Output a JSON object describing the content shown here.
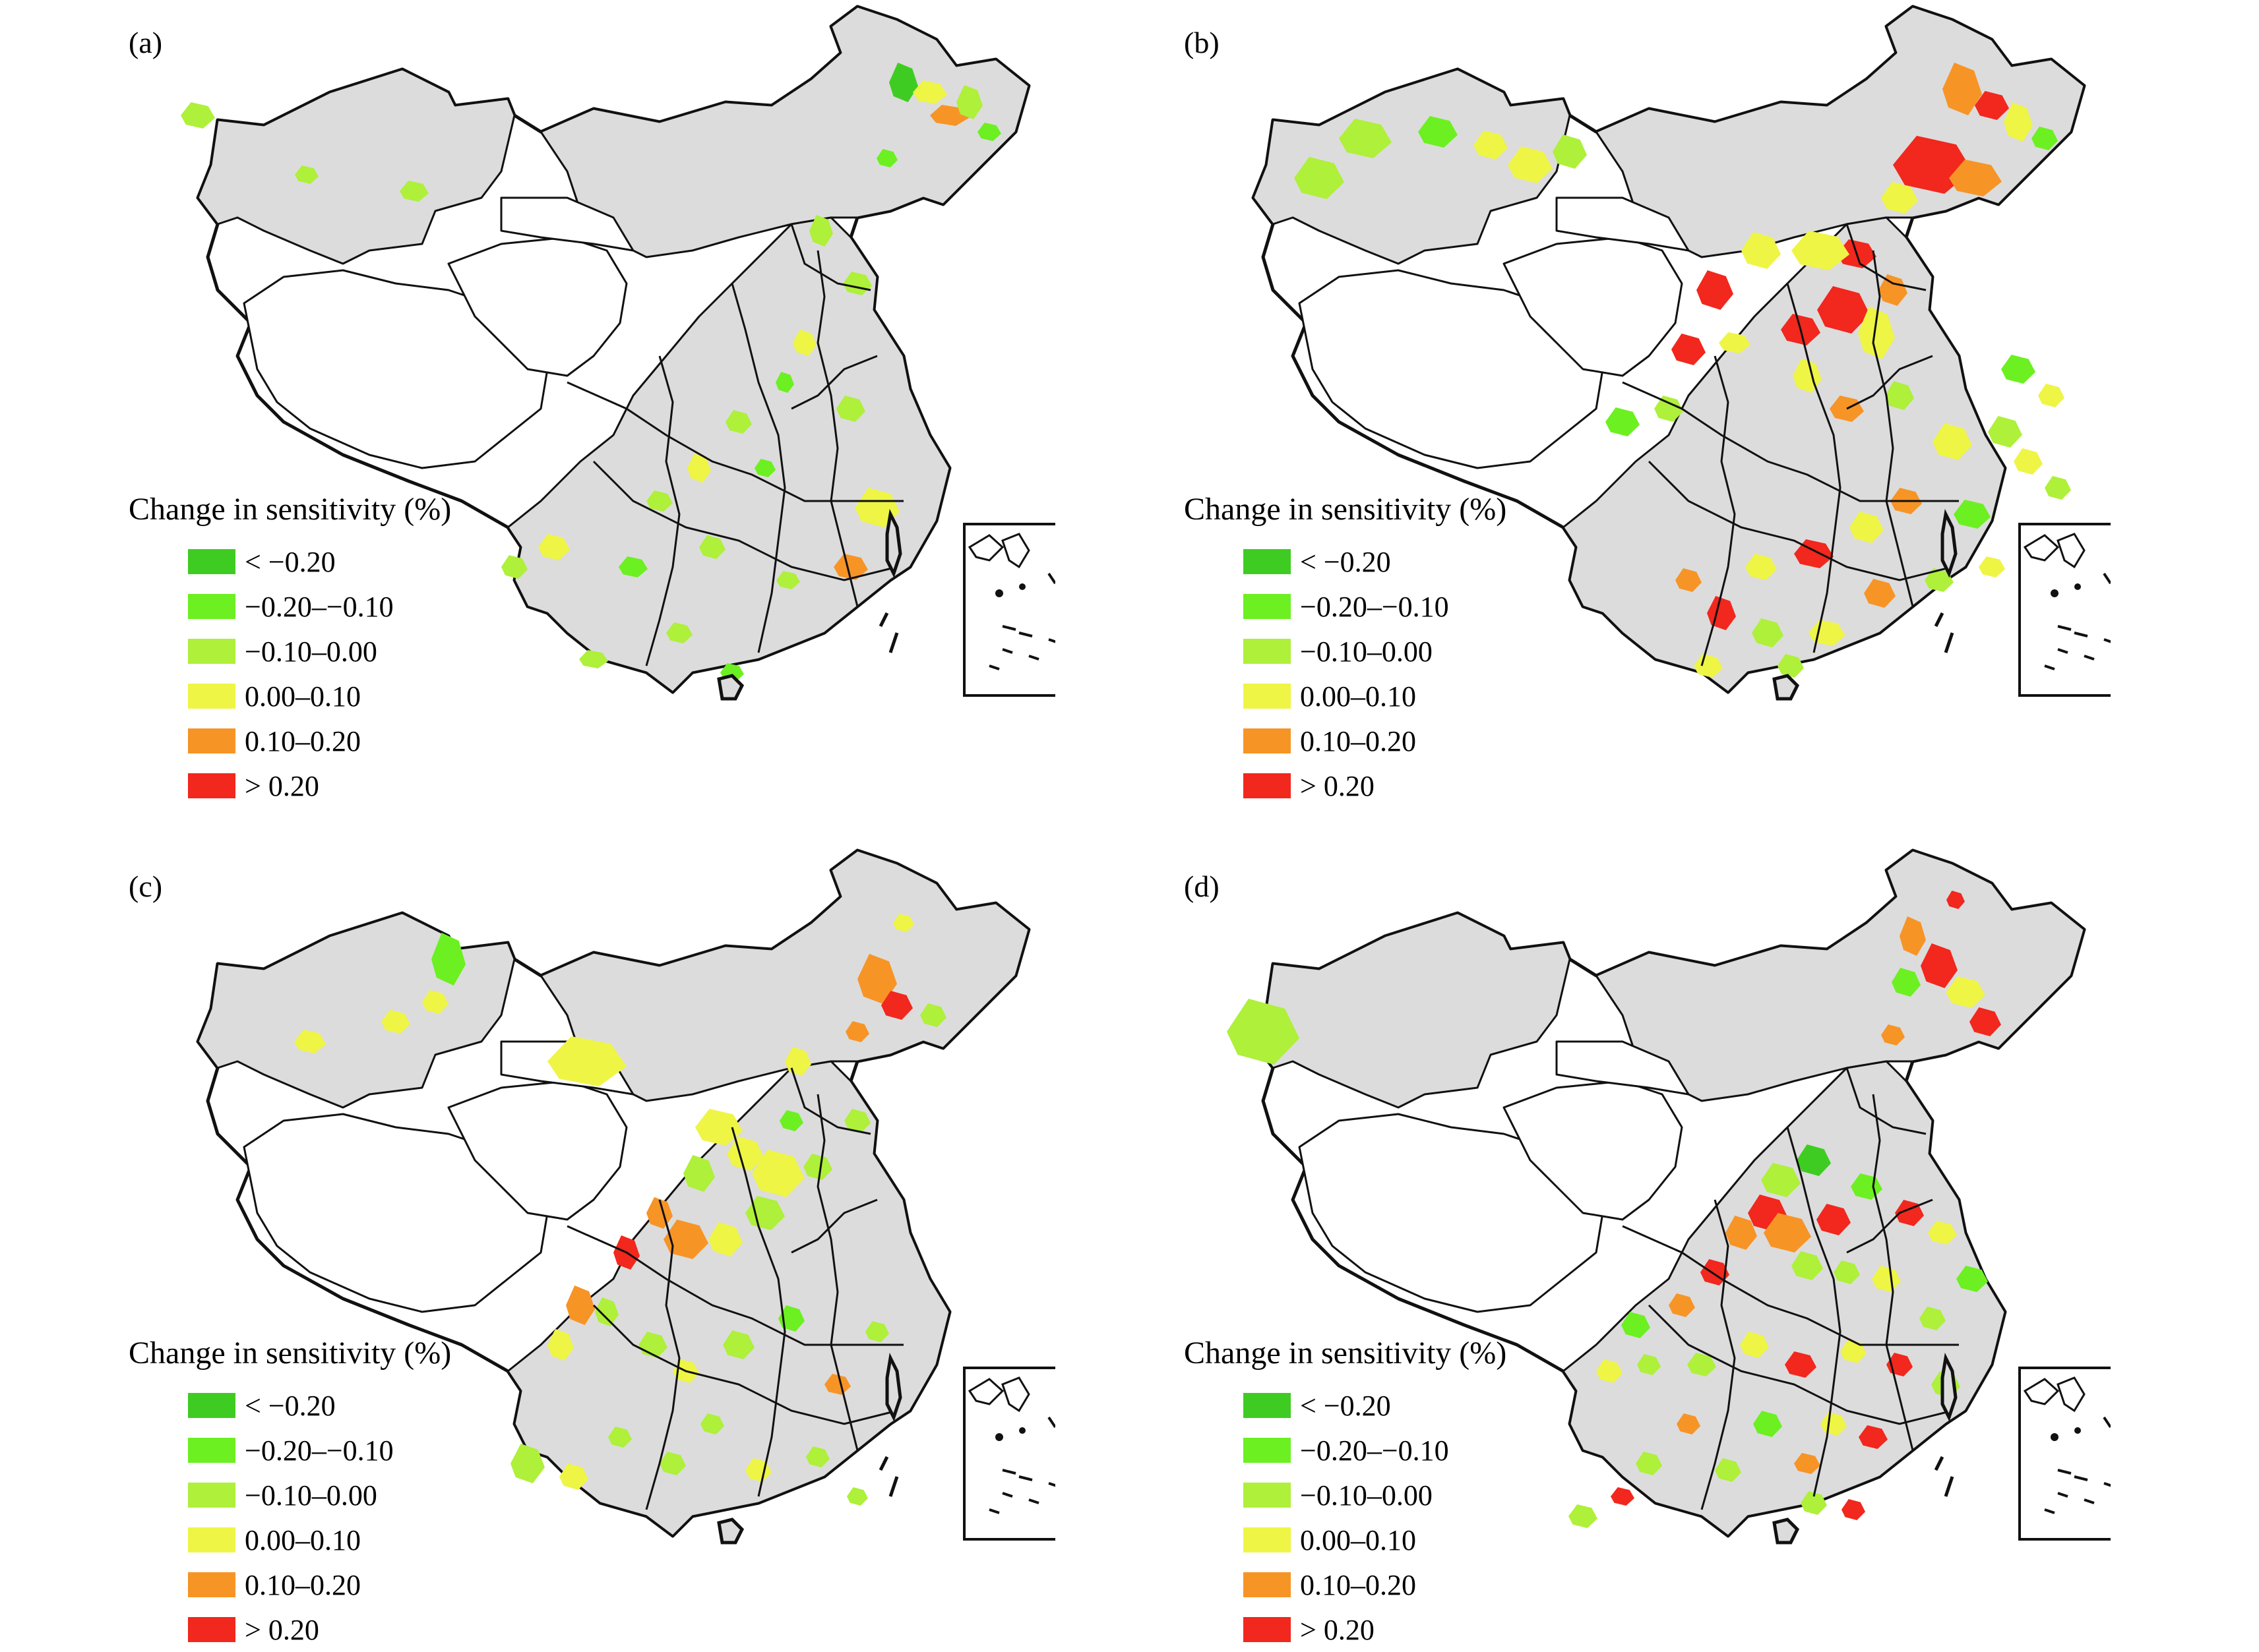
{
  "panels": [
    {
      "id": "a",
      "label": "(a)",
      "patches": [
        [
          300,
          175,
          26,
          20,
          3
        ],
        [
          465,
          265,
          18,
          14,
          3
        ],
        [
          628,
          290,
          22,
          16,
          3
        ],
        [
          1370,
          125,
          22,
          30,
          1
        ],
        [
          1410,
          140,
          26,
          18,
          4
        ],
        [
          1440,
          175,
          30,
          16,
          5
        ],
        [
          1470,
          155,
          20,
          26,
          3
        ],
        [
          1500,
          200,
          18,
          14,
          2
        ],
        [
          1345,
          240,
          16,
          14,
          2
        ],
        [
          1245,
          350,
          18,
          24,
          3
        ],
        [
          1300,
          430,
          22,
          18,
          3
        ],
        [
          1220,
          520,
          18,
          20,
          4
        ],
        [
          1190,
          580,
          14,
          16,
          2
        ],
        [
          1120,
          640,
          20,
          18,
          3
        ],
        [
          1060,
          710,
          18,
          22,
          4
        ],
        [
          1000,
          760,
          20,
          16,
          3
        ],
        [
          1160,
          710,
          16,
          14,
          2
        ],
        [
          1290,
          620,
          22,
          20,
          3
        ],
        [
          1330,
          770,
          34,
          30,
          4
        ],
        [
          1290,
          860,
          26,
          20,
          5
        ],
        [
          1195,
          880,
          18,
          14,
          3
        ],
        [
          1080,
          830,
          20,
          18,
          3
        ],
        [
          960,
          860,
          22,
          16,
          2
        ],
        [
          840,
          830,
          24,
          20,
          4
        ],
        [
          780,
          860,
          20,
          18,
          3
        ],
        [
          1110,
          1020,
          18,
          14,
          2
        ],
        [
          1030,
          960,
          20,
          16,
          3
        ],
        [
          900,
          1000,
          22,
          14,
          3
        ]
      ]
    },
    {
      "id": "b",
      "label": "(b)",
      "patches": [
        [
          1375,
          135,
          30,
          40,
          5
        ],
        [
          1420,
          160,
          26,
          22,
          6
        ],
        [
          1460,
          185,
          22,
          30,
          4
        ],
        [
          1500,
          210,
          20,
          18,
          2
        ],
        [
          1330,
          250,
          60,
          44,
          6
        ],
        [
          1395,
          270,
          40,
          28,
          5
        ],
        [
          1280,
          300,
          28,
          24,
          4
        ],
        [
          1215,
          385,
          30,
          22,
          6
        ],
        [
          1195,
          470,
          40,
          36,
          6
        ],
        [
          1245,
          505,
          28,
          40,
          4
        ],
        [
          1270,
          440,
          22,
          24,
          5
        ],
        [
          1130,
          500,
          30,
          24,
          6
        ],
        [
          1030,
          520,
          24,
          16,
          4
        ],
        [
          960,
          530,
          26,
          24,
          6
        ],
        [
          930,
          620,
          22,
          20,
          3
        ],
        [
          860,
          640,
          26,
          22,
          2
        ],
        [
          1070,
          380,
          30,
          28,
          4
        ],
        [
          1160,
          380,
          44,
          30,
          4
        ],
        [
          1000,
          440,
          28,
          30,
          6
        ],
        [
          1140,
          570,
          22,
          26,
          4
        ],
        [
          1200,
          620,
          26,
          20,
          5
        ],
        [
          1280,
          600,
          22,
          22,
          3
        ],
        [
          1360,
          670,
          30,
          28,
          4
        ],
        [
          1440,
          655,
          26,
          24,
          3
        ],
        [
          1475,
          700,
          22,
          20,
          4
        ],
        [
          1520,
          740,
          20,
          18,
          3
        ],
        [
          1390,
          780,
          28,
          22,
          2
        ],
        [
          1290,
          760,
          24,
          20,
          5
        ],
        [
          1230,
          800,
          26,
          24,
          4
        ],
        [
          1150,
          840,
          30,
          22,
          6
        ],
        [
          1070,
          860,
          24,
          20,
          4
        ],
        [
          1010,
          930,
          22,
          26,
          6
        ],
        [
          960,
          880,
          20,
          18,
          5
        ],
        [
          1080,
          960,
          24,
          22,
          3
        ],
        [
          1170,
          960,
          28,
          20,
          4
        ],
        [
          1250,
          900,
          24,
          22,
          5
        ],
        [
          1340,
          880,
          22,
          18,
          3
        ],
        [
          1420,
          860,
          20,
          16,
          4
        ],
        [
          1115,
          1010,
          20,
          18,
          3
        ],
        [
          990,
          1010,
          22,
          18,
          4
        ],
        [
          400,
          270,
          38,
          32,
          3
        ],
        [
          470,
          210,
          40,
          30,
          3
        ],
        [
          580,
          200,
          30,
          24,
          2
        ],
        [
          660,
          220,
          26,
          22,
          4
        ],
        [
          720,
          250,
          34,
          28,
          4
        ],
        [
          780,
          230,
          26,
          26,
          3
        ],
        [
          1460,
          560,
          26,
          22,
          2
        ],
        [
          1510,
          600,
          20,
          18,
          4
        ]
      ]
    },
    {
      "id": "c",
      "label": "(c)",
      "patches": [
        [
          680,
          175,
          26,
          40,
          2
        ],
        [
          470,
          300,
          24,
          18,
          4
        ],
        [
          600,
          270,
          22,
          18,
          4
        ],
        [
          660,
          240,
          20,
          18,
          4
        ],
        [
          1370,
          120,
          16,
          14,
          4
        ],
        [
          1330,
          205,
          30,
          38,
          5
        ],
        [
          1360,
          245,
          24,
          22,
          6
        ],
        [
          1415,
          260,
          20,
          18,
          3
        ],
        [
          1300,
          285,
          18,
          16,
          5
        ],
        [
          1210,
          330,
          20,
          22,
          4
        ],
        [
          1090,
          430,
          36,
          28,
          4
        ],
        [
          1130,
          470,
          28,
          26,
          4
        ],
        [
          1180,
          500,
          40,
          36,
          4
        ],
        [
          1060,
          500,
          24,
          28,
          3
        ],
        [
          1000,
          560,
          20,
          24,
          5
        ],
        [
          950,
          620,
          20,
          26,
          6
        ],
        [
          1040,
          600,
          34,
          30,
          5
        ],
        [
          1100,
          600,
          26,
          26,
          4
        ],
        [
          1160,
          560,
          30,
          26,
          3
        ],
        [
          1240,
          490,
          22,
          20,
          3
        ],
        [
          1300,
          420,
          20,
          18,
          3
        ],
        [
          1200,
          420,
          18,
          16,
          2
        ],
        [
          880,
          700,
          22,
          30,
          5
        ],
        [
          850,
          760,
          20,
          24,
          4
        ],
        [
          920,
          710,
          18,
          22,
          3
        ],
        [
          990,
          760,
          22,
          20,
          3
        ],
        [
          1040,
          800,
          20,
          18,
          4
        ],
        [
          1120,
          760,
          24,
          22,
          3
        ],
        [
          1200,
          720,
          20,
          20,
          2
        ],
        [
          1270,
          820,
          20,
          16,
          5
        ],
        [
          1330,
          740,
          18,
          16,
          3
        ],
        [
          800,
          940,
          26,
          30,
          3
        ],
        [
          870,
          960,
          22,
          20,
          4
        ],
        [
          940,
          900,
          18,
          16,
          3
        ],
        [
          1020,
          940,
          20,
          18,
          3
        ],
        [
          1080,
          880,
          18,
          16,
          3
        ],
        [
          1150,
          950,
          20,
          18,
          4
        ],
        [
          1240,
          930,
          18,
          16,
          3
        ],
        [
          1300,
          990,
          16,
          14,
          3
        ],
        [
          890,
          330,
          60,
          38,
          4
        ]
      ]
    },
    {
      "id": "d",
      "label": "(d)",
      "patches": [
        [
          315,
          285,
          55,
          50,
          3
        ],
        [
          1365,
          85,
          14,
          14,
          6
        ],
        [
          1300,
          140,
          20,
          30,
          5
        ],
        [
          1340,
          185,
          28,
          34,
          6
        ],
        [
          1290,
          210,
          22,
          22,
          2
        ],
        [
          1380,
          225,
          30,
          24,
          4
        ],
        [
          1410,
          270,
          24,
          22,
          6
        ],
        [
          1270,
          290,
          18,
          16,
          5
        ],
        [
          1150,
          480,
          26,
          24,
          1
        ],
        [
          1100,
          510,
          30,
          26,
          3
        ],
        [
          1080,
          560,
          30,
          28,
          6
        ],
        [
          1040,
          590,
          24,
          26,
          5
        ],
        [
          1110,
          590,
          36,
          30,
          5
        ],
        [
          1180,
          570,
          26,
          24,
          6
        ],
        [
          1230,
          520,
          24,
          20,
          2
        ],
        [
          1295,
          560,
          22,
          20,
          6
        ],
        [
          1345,
          590,
          22,
          18,
          4
        ],
        [
          1390,
          660,
          24,
          20,
          2
        ],
        [
          1330,
          720,
          20,
          18,
          3
        ],
        [
          1260,
          660,
          22,
          20,
          4
        ],
        [
          1200,
          650,
          20,
          18,
          3
        ],
        [
          1140,
          640,
          24,
          22,
          3
        ],
        [
          1000,
          650,
          22,
          20,
          6
        ],
        [
          950,
          700,
          20,
          18,
          5
        ],
        [
          880,
          730,
          22,
          20,
          2
        ],
        [
          840,
          800,
          20,
          18,
          4
        ],
        [
          900,
          790,
          18,
          16,
          3
        ],
        [
          980,
          790,
          22,
          18,
          3
        ],
        [
          1060,
          760,
          22,
          20,
          4
        ],
        [
          1130,
          790,
          24,
          20,
          6
        ],
        [
          1210,
          770,
          20,
          18,
          4
        ],
        [
          1280,
          790,
          20,
          18,
          6
        ],
        [
          1350,
          820,
          22,
          20,
          3
        ],
        [
          1180,
          880,
          20,
          18,
          4
        ],
        [
          1240,
          900,
          22,
          18,
          6
        ],
        [
          1140,
          940,
          20,
          16,
          5
        ],
        [
          1080,
          880,
          22,
          20,
          2
        ],
        [
          1020,
          950,
          20,
          18,
          3
        ],
        [
          960,
          880,
          18,
          16,
          5
        ],
        [
          900,
          940,
          20,
          18,
          3
        ],
        [
          860,
          990,
          18,
          14,
          6
        ],
        [
          800,
          1020,
          22,
          18,
          3
        ],
        [
          1150,
          1000,
          20,
          18,
          3
        ],
        [
          1210,
          1010,
          18,
          16,
          6
        ]
      ]
    }
  ],
  "legend": {
    "title": "Change in sensitivity (%)",
    "items": [
      {
        "label": "< −0.20",
        "color": "#3fcc22"
      },
      {
        "label": "−0.20–−0.10",
        "color": "#6cf021"
      },
      {
        "label": "−0.10–0.00",
        "color": "#aef03a"
      },
      {
        "label": "0.00–0.10",
        "color": "#eef545"
      },
      {
        "label": "0.10–0.20",
        "color": "#f79426"
      },
      {
        "label": "> 0.20",
        "color": "#f2271d"
      }
    ]
  }
}
